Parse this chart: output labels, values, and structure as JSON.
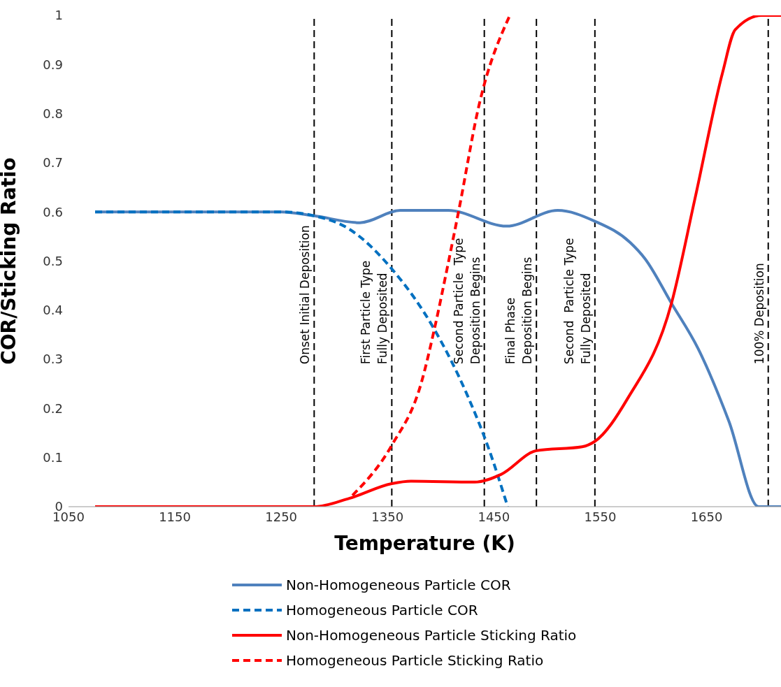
{
  "chart_data": {
    "type": "line",
    "xlabel": "Temperature (K)",
    "ylabel": "COR/Sticking Ratio",
    "xlim": [
      1050,
      1720
    ],
    "xticks": [
      1050,
      1150,
      1250,
      1350,
      1450,
      1550,
      1650
    ],
    "ylim": [
      0,
      1
    ],
    "yticks": [
      0,
      0.1,
      0.2,
      0.3,
      0.4,
      0.5,
      0.6,
      0.7,
      0.8,
      0.9,
      1
    ],
    "grid": false,
    "legend": "bottom",
    "marker": "none",
    "series": [
      {
        "name": "Non-Homogeneous Particle COR",
        "color": "#4f81bd",
        "line_style": "solid",
        "x": [
          1075,
          1150,
          1250,
          1281,
          1324,
          1362,
          1407,
          1462,
          1510,
          1545,
          1578,
          1592,
          1617,
          1642,
          1671,
          1699,
          1720
        ],
        "values": [
          0.6,
          0.6,
          0.6,
          0.592,
          0.578,
          0.603,
          0.603,
          0.571,
          0.603,
          0.581,
          0.538,
          0.505,
          0.414,
          0.322,
          0.174,
          0,
          0
        ]
      },
      {
        "name": "Homogeneous Particle COR",
        "color": "#0070c0",
        "line_style": "dashed",
        "x": [
          1075,
          1150,
          1250,
          1281,
          1314,
          1354,
          1394,
          1425,
          1445,
          1463
        ],
        "values": [
          0.6,
          0.6,
          0.6,
          0.592,
          0.565,
          0.484,
          0.361,
          0.227,
          0.119,
          0
        ]
      },
      {
        "name": "Non-Homogeneous Particle Sticking Ratio",
        "color": "#ff0000",
        "line_style": "solid",
        "x": [
          1075,
          1200,
          1281,
          1314,
          1354,
          1372,
          1432,
          1457,
          1490,
          1533,
          1545,
          1576,
          1617,
          1639,
          1665,
          1677,
          1702,
          1720
        ],
        "values": [
          0,
          0,
          0,
          0.017,
          0.047,
          0.052,
          0.05,
          0.066,
          0.114,
          0.122,
          0.133,
          0.221,
          0.414,
          0.626,
          0.883,
          0.971,
          1,
          1
        ]
      },
      {
        "name": "Homogeneous Particle Sticking Ratio",
        "color": "#ff0000",
        "line_style": "dashed",
        "x": [
          1317,
          1354,
          1382,
          1394,
          1407,
          1417,
          1436,
          1465
        ],
        "values": [
          0.023,
          0.125,
          0.254,
          0.361,
          0.495,
          0.603,
          0.817,
          1
        ]
      }
    ],
    "ref_lines": [
      {
        "axis": "x",
        "value": 1281,
        "label": "Onset Initial Deposition",
        "color": "#000000",
        "line_style": "dashed"
      },
      {
        "axis": "x",
        "value": 1354,
        "label": "First Particle Type\nFully Deposited",
        "color": "#000000",
        "line_style": "dashed"
      },
      {
        "axis": "x",
        "value": 1441,
        "label": "Second Particle  Type\nDeposition Begins",
        "color": "#000000",
        "line_style": "dashed"
      },
      {
        "axis": "x",
        "value": 1490,
        "label": "Final Phase\nDeposition Begins",
        "color": "#000000",
        "line_style": "dashed"
      },
      {
        "axis": "x",
        "value": 1545,
        "label": "Second  Particle Type\nFully Deposited",
        "color": "#000000",
        "line_style": "dashed"
      },
      {
        "axis": "x",
        "value": 1708,
        "label": "100% Deposition",
        "color": "#000000",
        "line_style": "dashed"
      }
    ]
  }
}
